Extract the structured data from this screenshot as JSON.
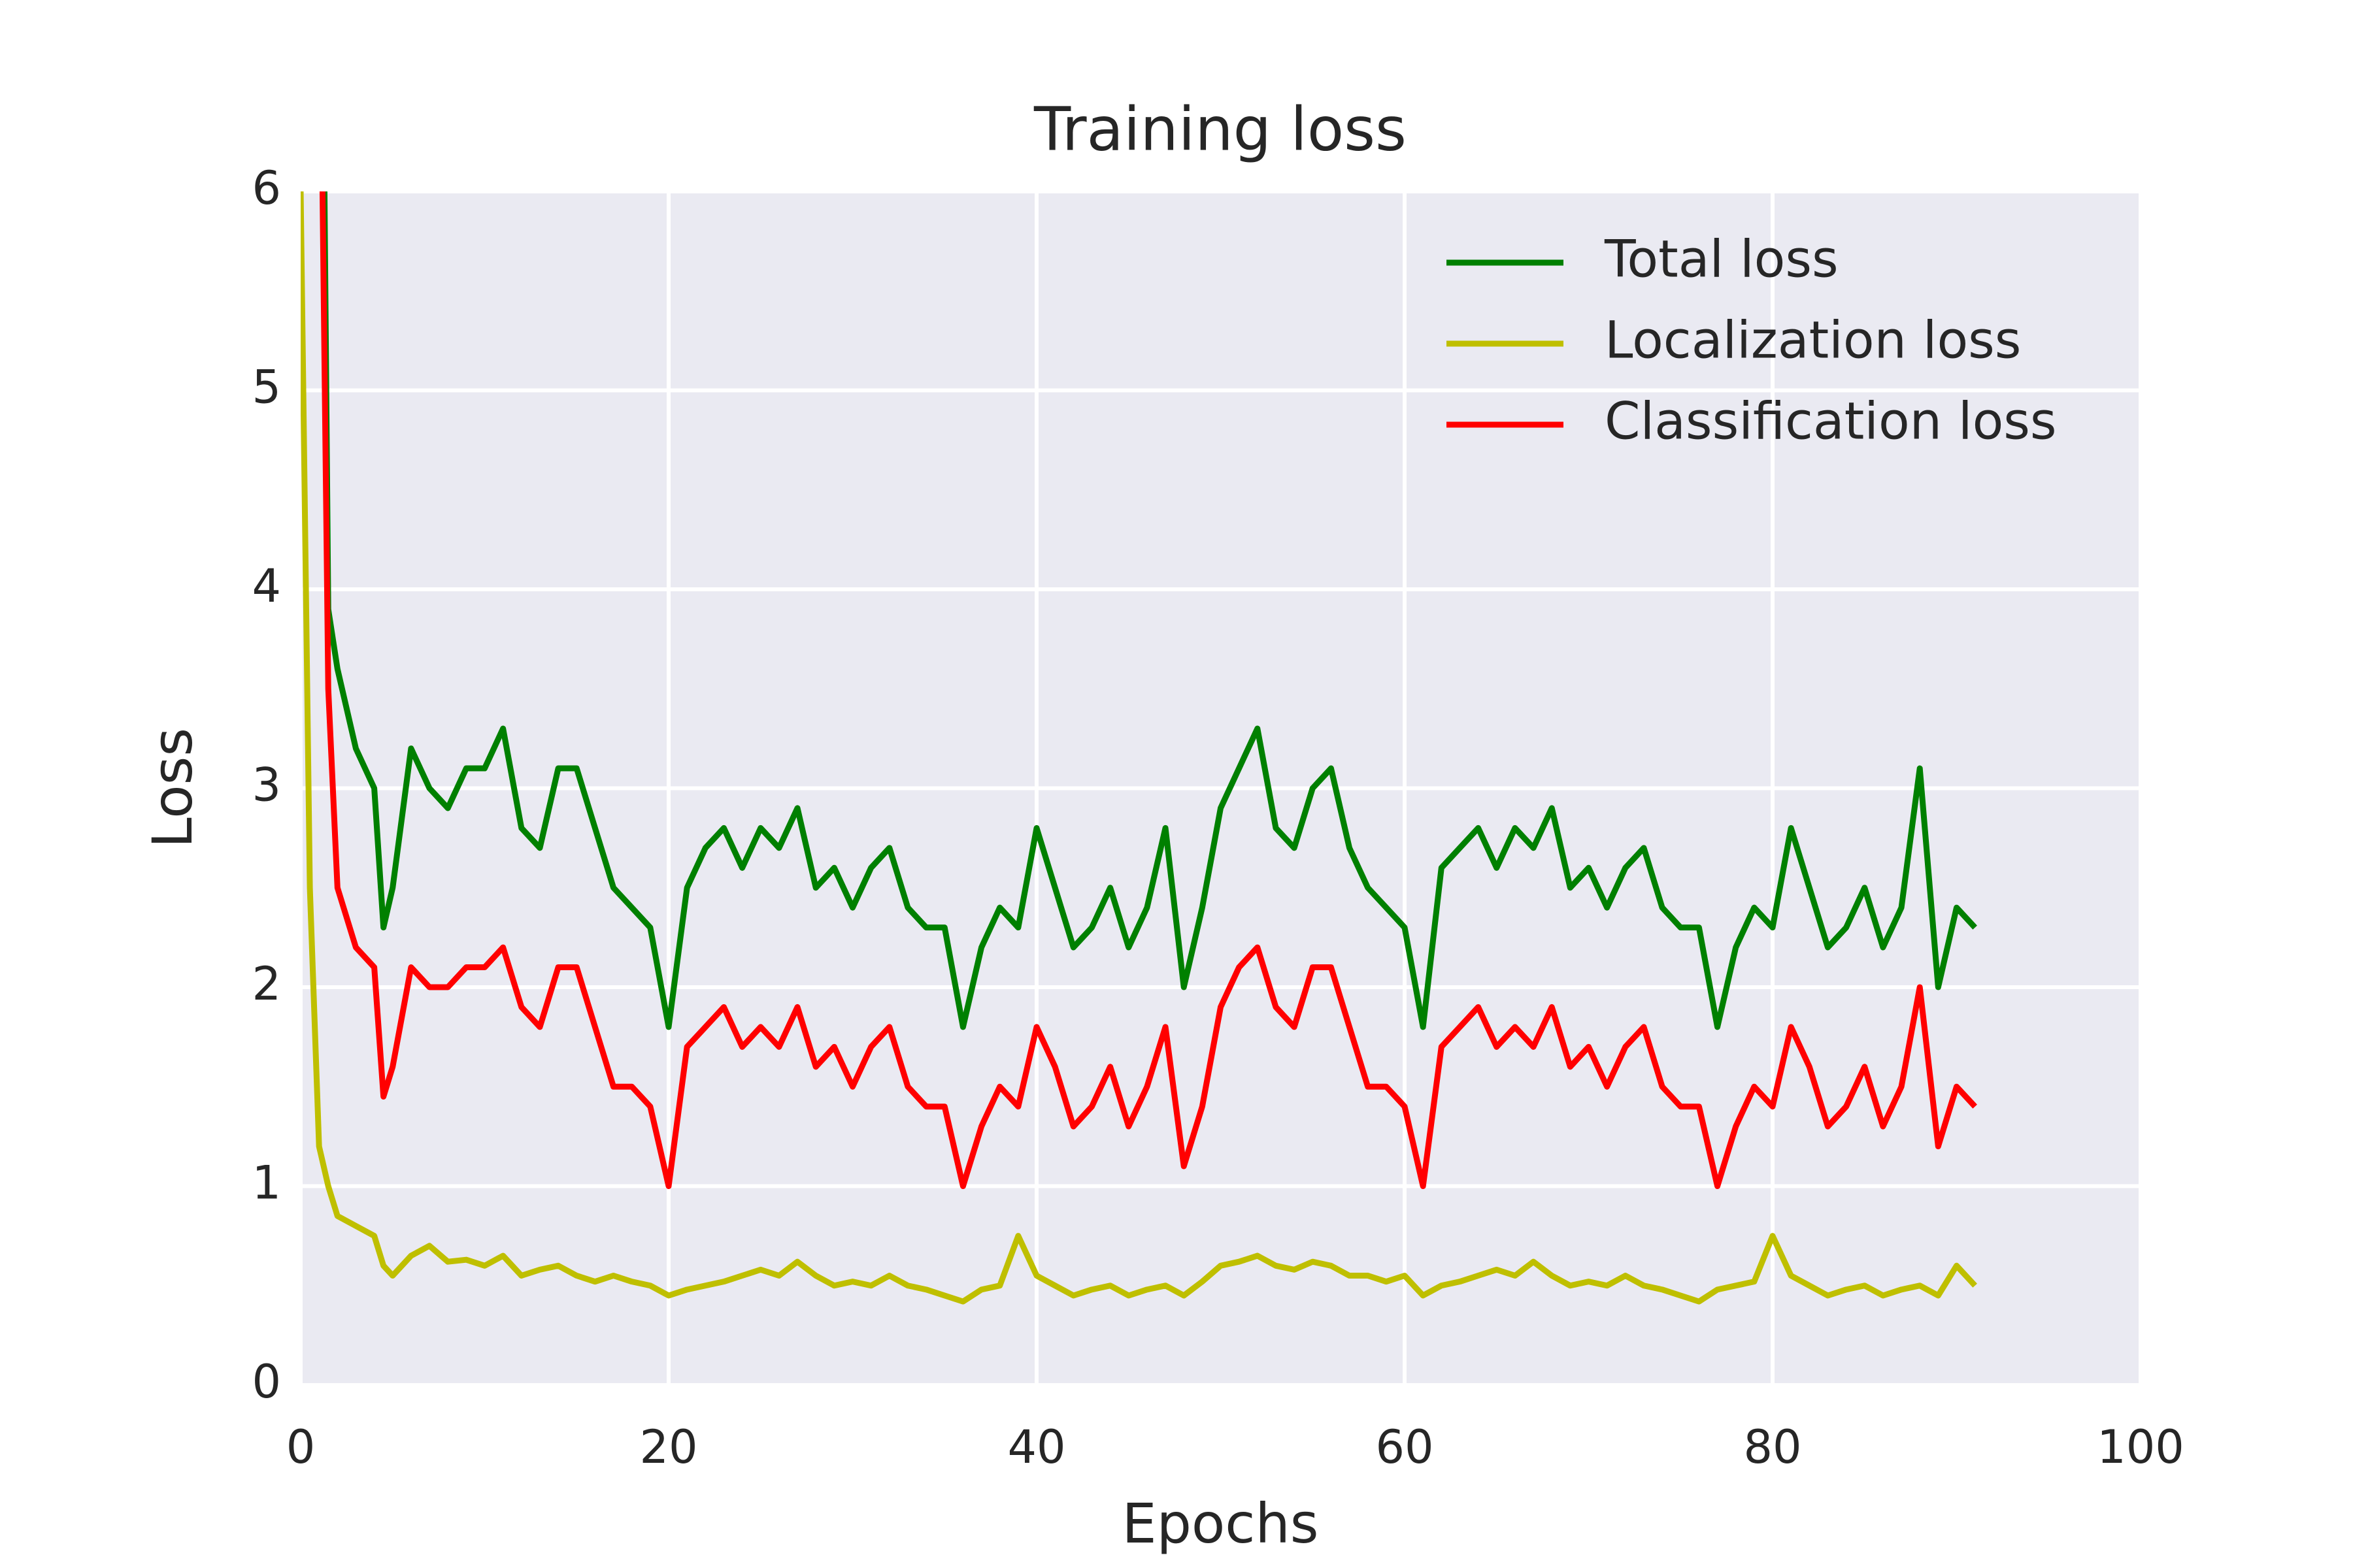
{
  "chart_data": {
    "type": "line",
    "title": "Training loss",
    "x_label": "Epochs",
    "y_label": "Loss",
    "x": [
      0,
      0.5,
      1,
      1.5,
      2,
      3,
      4,
      4.5,
      5,
      6,
      7,
      8,
      9,
      10,
      11,
      12,
      13,
      14,
      15,
      16,
      17,
      18,
      19,
      20,
      21,
      22,
      23,
      24,
      25,
      26,
      27,
      28,
      29,
      30,
      31,
      32,
      33,
      34,
      35,
      36,
      37,
      38,
      39,
      40,
      41,
      42,
      43,
      44,
      45,
      46,
      47,
      48,
      49,
      50,
      51,
      52,
      53,
      54,
      55,
      56,
      57,
      58,
      59,
      60,
      61,
      62,
      63,
      64,
      65,
      66,
      67,
      68,
      69,
      70,
      71,
      72,
      73,
      74,
      75,
      76,
      77,
      78,
      79,
      80,
      81,
      82,
      83,
      84,
      85,
      86,
      87,
      88,
      89,
      90,
      91
    ],
    "series": [
      {
        "name": "Total loss",
        "color": "#008000",
        "values": [
          null,
          null,
          9,
          3.9,
          3.6,
          3.2,
          3.0,
          2.3,
          2.5,
          3.2,
          3.0,
          2.9,
          3.1,
          3.1,
          3.3,
          2.8,
          2.7,
          3.1,
          3.1,
          2.8,
          2.5,
          2.4,
          2.3,
          1.8,
          2.5,
          2.7,
          2.8,
          2.6,
          2.8,
          2.7,
          2.9,
          2.5,
          2.6,
          2.4,
          2.6,
          2.7,
          2.4,
          2.3,
          2.3,
          1.8,
          2.2,
          2.4,
          2.3,
          2.8,
          2.5,
          2.2,
          2.3,
          2.5,
          2.2,
          2.4,
          2.8,
          2.0,
          2.4,
          2.9,
          3.1,
          3.3,
          2.8,
          2.7,
          3.0,
          3.1,
          2.7,
          2.5,
          2.4,
          2.3,
          1.8,
          2.6,
          2.7,
          2.8,
          2.6,
          2.8,
          2.7,
          2.9,
          2.5,
          2.6,
          2.4,
          2.6,
          2.7,
          2.4,
          2.3,
          2.3,
          1.8,
          2.2,
          2.4,
          2.3,
          2.8,
          2.5,
          2.2,
          2.3,
          2.5,
          2.2,
          2.4,
          3.1,
          2.0,
          2.4,
          2.3
        ]
      },
      {
        "name": "Localization loss",
        "color": "#bfbf00",
        "values": [
          6,
          2.5,
          1.2,
          1.0,
          0.85,
          0.8,
          0.75,
          0.6,
          0.55,
          0.65,
          0.7,
          0.62,
          0.63,
          0.6,
          0.65,
          0.55,
          0.58,
          0.6,
          0.55,
          0.52,
          0.55,
          0.52,
          0.5,
          0.45,
          0.48,
          0.5,
          0.52,
          0.55,
          0.58,
          0.55,
          0.62,
          0.55,
          0.5,
          0.52,
          0.5,
          0.55,
          0.5,
          0.48,
          0.45,
          0.42,
          0.48,
          0.5,
          0.75,
          0.55,
          0.5,
          0.45,
          0.48,
          0.5,
          0.45,
          0.48,
          0.5,
          0.45,
          0.52,
          0.6,
          0.62,
          0.65,
          0.6,
          0.58,
          0.62,
          0.6,
          0.55,
          0.55,
          0.52,
          0.55,
          0.45,
          0.5,
          0.52,
          0.55,
          0.58,
          0.55,
          0.62,
          0.55,
          0.5,
          0.52,
          0.5,
          0.55,
          0.5,
          0.48,
          0.45,
          0.42,
          0.48,
          0.5,
          0.52,
          0.75,
          0.55,
          0.5,
          0.45,
          0.48,
          0.5,
          0.45,
          0.48,
          0.5,
          0.45,
          0.6,
          0.5
        ]
      },
      {
        "name": "Classification loss",
        "color": "#ff0000",
        "values": [
          null,
          null,
          7.5,
          3.5,
          2.5,
          2.2,
          2.1,
          1.45,
          1.6,
          2.1,
          2.0,
          2.0,
          2.1,
          2.1,
          2.2,
          1.9,
          1.8,
          2.1,
          2.1,
          1.8,
          1.5,
          1.5,
          1.4,
          1.0,
          1.7,
          1.8,
          1.9,
          1.7,
          1.8,
          1.7,
          1.9,
          1.6,
          1.7,
          1.5,
          1.7,
          1.8,
          1.5,
          1.4,
          1.4,
          1.0,
          1.3,
          1.5,
          1.4,
          1.8,
          1.6,
          1.3,
          1.4,
          1.6,
          1.3,
          1.5,
          1.8,
          1.1,
          1.4,
          1.9,
          2.1,
          2.2,
          1.9,
          1.8,
          2.1,
          2.1,
          1.8,
          1.5,
          1.5,
          1.4,
          1.0,
          1.7,
          1.8,
          1.9,
          1.7,
          1.8,
          1.7,
          1.9,
          1.6,
          1.7,
          1.5,
          1.7,
          1.8,
          1.5,
          1.4,
          1.4,
          1.0,
          1.3,
          1.5,
          1.4,
          1.8,
          1.6,
          1.3,
          1.4,
          1.6,
          1.3,
          1.5,
          2.0,
          1.2,
          1.5,
          1.4
        ]
      }
    ],
    "xlim": [
      0,
      100
    ],
    "xticks": [
      0,
      20,
      40,
      60,
      80,
      100
    ],
    "ylim": [
      0,
      6
    ],
    "yticks": [
      0,
      1,
      2,
      3,
      4,
      5,
      6
    ],
    "grid": true,
    "legend": "upper right"
  }
}
